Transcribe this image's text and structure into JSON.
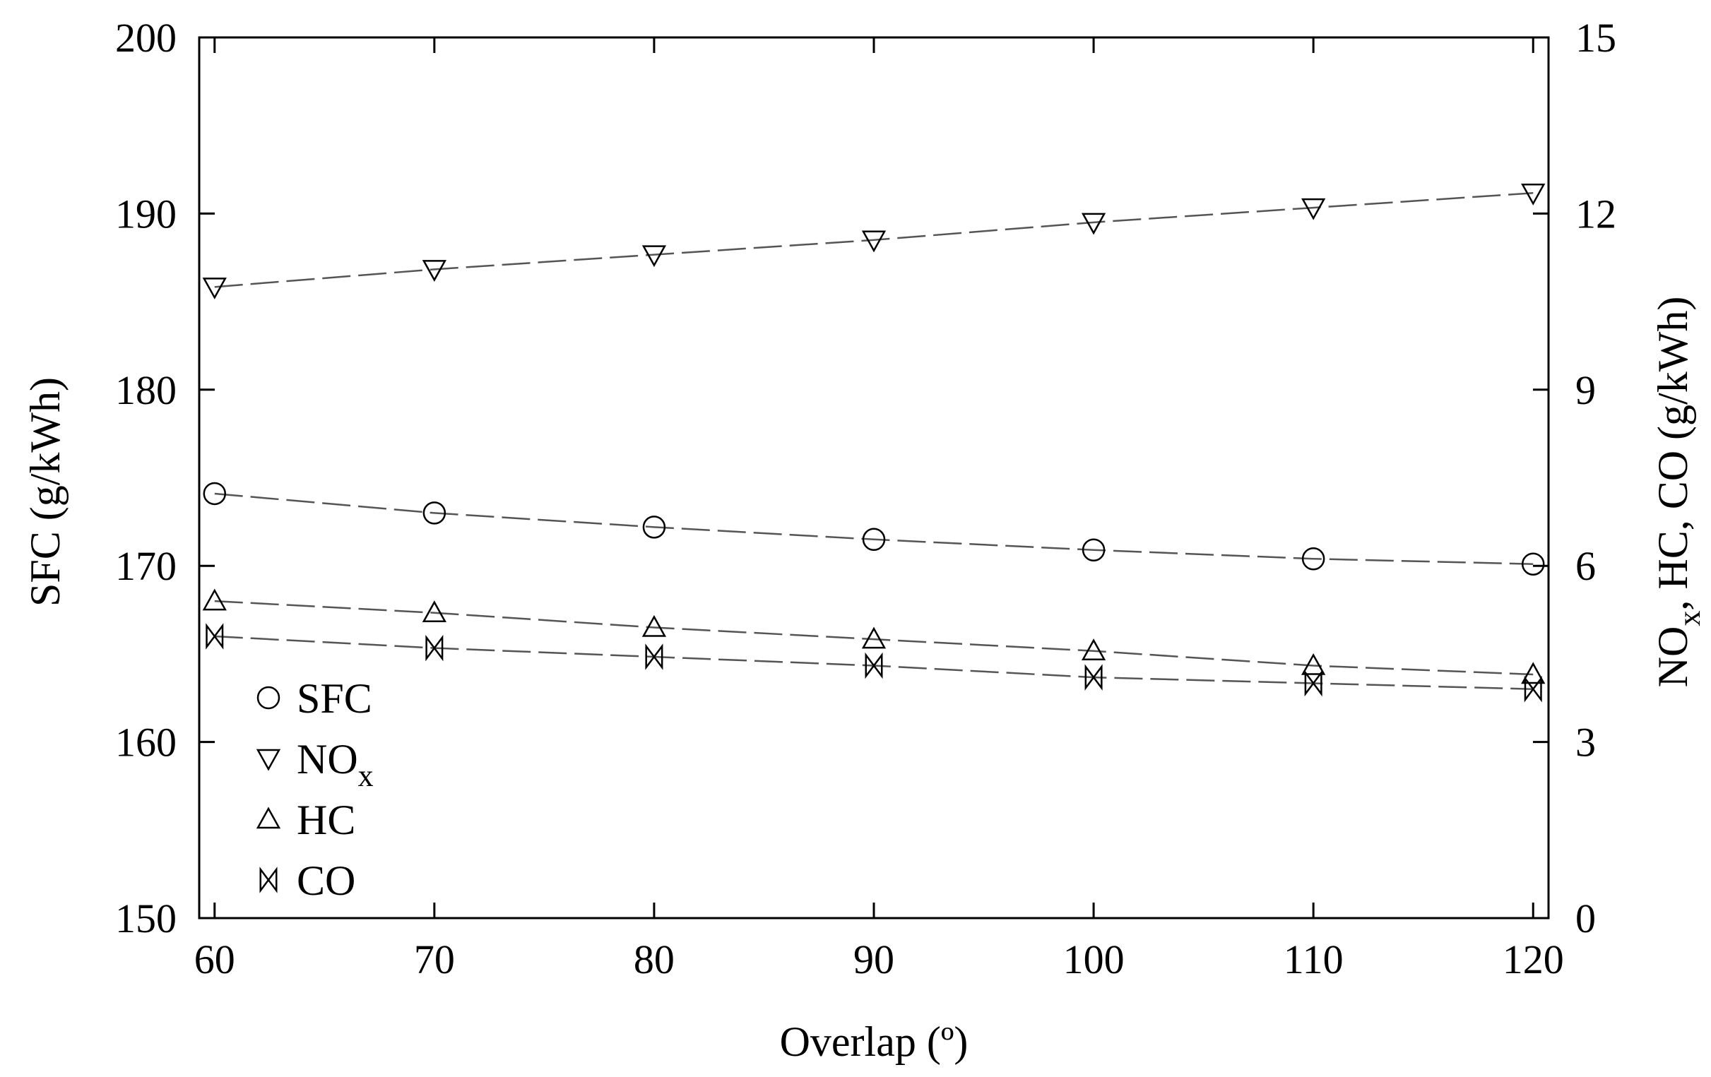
{
  "chart_data": {
    "type": "line",
    "xlabel": "Overlap (º)",
    "ylabel_left": "SFC (g/kWh)",
    "ylabel_right_parts": [
      "NO",
      "x",
      ", HC, CO (g/kWh)"
    ],
    "x": [
      60,
      70,
      80,
      90,
      100,
      110,
      120
    ],
    "xlim": [
      59.3,
      120.7
    ],
    "xticks": [
      60,
      70,
      80,
      90,
      100,
      110,
      120
    ],
    "ylim_left": [
      150,
      200
    ],
    "yticks_left": [
      150,
      160,
      170,
      180,
      190,
      200
    ],
    "ylim_right": [
      0,
      15
    ],
    "yticks_right": [
      0,
      3,
      6,
      9,
      12,
      15
    ],
    "grid": false,
    "legend_position": "lower-left",
    "series": [
      {
        "name": "SFC",
        "label": "SFC",
        "sub": "",
        "axis": "left",
        "marker": "circle",
        "values": [
          174.1,
          173.0,
          172.2,
          171.5,
          170.9,
          170.4,
          170.1
        ]
      },
      {
        "name": "NOx",
        "label": "NO",
        "sub": "x",
        "axis": "right",
        "marker": "triangle-down",
        "values": [
          10.75,
          11.05,
          11.3,
          11.55,
          11.85,
          12.1,
          12.35
        ]
      },
      {
        "name": "HC",
        "label": "HC",
        "sub": "",
        "axis": "right",
        "marker": "triangle-up",
        "values": [
          5.4,
          5.2,
          4.95,
          4.75,
          4.55,
          4.3,
          4.15
        ]
      },
      {
        "name": "CO",
        "label": "CO",
        "sub": "",
        "axis": "right",
        "marker": "bowtie",
        "values": [
          4.8,
          4.6,
          4.45,
          4.3,
          4.1,
          4.0,
          3.9
        ]
      }
    ]
  }
}
